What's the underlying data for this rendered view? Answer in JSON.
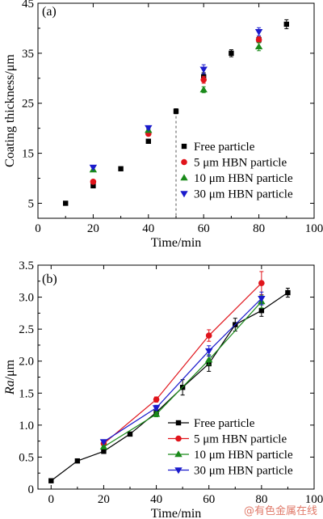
{
  "colors": {
    "free": "#000000",
    "hbn5": "#e0141b",
    "hbn10": "#1a8a1a",
    "hbn30": "#1a1acc"
  },
  "watermark": "@有色金属在线",
  "chart_data": [
    {
      "type": "scatter",
      "panel_label": "(a)",
      "xlabel": "Time/min",
      "ylabel": "Coating thickness/μm",
      "xlim": [
        0,
        100
      ],
      "ylim": [
        2,
        45
      ],
      "xticks": [
        0,
        20,
        40,
        60,
        80,
        100
      ],
      "yticks": [
        5,
        15,
        25,
        35,
        45
      ],
      "legend_position": "center-right",
      "annotations": [
        {
          "type": "vertical-dashed-line",
          "x": 50
        }
      ],
      "series": [
        {
          "name": "Free particle",
          "marker": "square",
          "color_key": "free",
          "x": [
            10,
            20,
            30,
            40,
            50,
            60,
            70,
            80,
            90
          ],
          "y": [
            5.0,
            8.5,
            11.9,
            17.4,
            23.4,
            30.3,
            35.0,
            37.7,
            40.8
          ],
          "err": [
            0,
            0.4,
            0,
            0,
            0.5,
            0.8,
            0.7,
            0.6,
            0.9
          ]
        },
        {
          "name": "5 μm HBN particle",
          "marker": "circle",
          "color_key": "hbn5",
          "x": [
            20,
            40,
            60,
            80
          ],
          "y": [
            9.3,
            18.9,
            29.7,
            37.7
          ],
          "err": [
            0,
            0.4,
            0.7,
            0.6
          ]
        },
        {
          "name": "10 μm HBN particle",
          "marker": "triangle-up",
          "color_key": "hbn10",
          "x": [
            20,
            40,
            60,
            80
          ],
          "y": [
            11.7,
            19.6,
            27.7,
            36.3
          ],
          "err": [
            0,
            0.3,
            0.6,
            0.8
          ]
        },
        {
          "name": "30 μm HBN particle",
          "marker": "triangle-down",
          "color_key": "hbn30",
          "x": [
            20,
            40,
            60,
            80
          ],
          "y": [
            12.2,
            20.1,
            31.8,
            39.3
          ],
          "err": [
            0,
            0.3,
            0.9,
            0.8
          ]
        }
      ]
    },
    {
      "type": "line",
      "panel_label": "(b)",
      "xlabel": "Time/min",
      "ylabel": "Ra/μm",
      "xlim": [
        -5,
        100
      ],
      "ylim": [
        0,
        3.5
      ],
      "xticks": [
        0,
        20,
        40,
        60,
        80,
        100
      ],
      "yticks": [
        0,
        0.5,
        1.0,
        1.5,
        2.0,
        2.5,
        3.0,
        3.5
      ],
      "ytick_labels": [
        "0",
        "0.5",
        "1.0",
        "1.5",
        "2.0",
        "2.5",
        "3.0",
        "3.5"
      ],
      "legend_position": "bottom-right",
      "series": [
        {
          "name": "Free particle",
          "marker": "square",
          "color_key": "free",
          "x": [
            0,
            10,
            20,
            30,
            40,
            50,
            60,
            70,
            80,
            90
          ],
          "y": [
            0.13,
            0.44,
            0.59,
            0.86,
            1.2,
            1.59,
            1.96,
            2.57,
            2.79,
            3.07
          ],
          "err": [
            0,
            0,
            0.03,
            0,
            0.05,
            0.12,
            0.12,
            0.1,
            0.09,
            0.07
          ]
        },
        {
          "name": "5 μm HBN particle",
          "marker": "circle",
          "color_key": "hbn5",
          "x": [
            20,
            40,
            60,
            80
          ],
          "y": [
            0.71,
            1.4,
            2.4,
            3.22
          ],
          "err": [
            0.02,
            0.04,
            0.09,
            0.18
          ]
        },
        {
          "name": "10 μm HBN particle",
          "marker": "triangle-up",
          "color_key": "hbn10",
          "x": [
            20,
            40,
            60,
            80
          ],
          "y": [
            0.66,
            1.17,
            2.02,
            2.93
          ],
          "err": [
            0.02,
            0.04,
            0.08,
            0.1
          ]
        },
        {
          "name": "30 μm HBN particle",
          "marker": "triangle-down",
          "color_key": "hbn30",
          "x": [
            20,
            40,
            60,
            80
          ],
          "y": [
            0.74,
            1.27,
            2.16,
            2.98
          ],
          "err": [
            0.02,
            0.04,
            0.08,
            0.1
          ]
        }
      ]
    }
  ]
}
